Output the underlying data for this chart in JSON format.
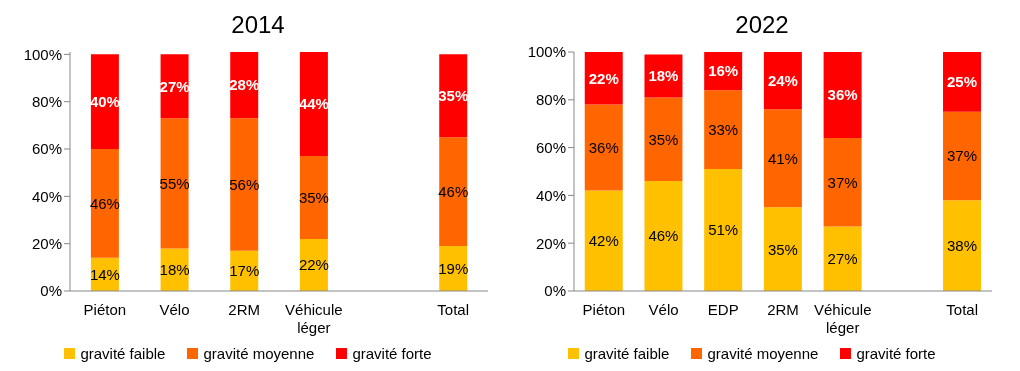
{
  "chart_data": [
    {
      "type": "bar",
      "title": "2014",
      "stacked": true,
      "legend": "bottom",
      "grid": false,
      "categories": [
        "Piéton",
        "Vélo",
        "2RM",
        "Véhicule léger",
        null,
        "Total"
      ],
      "series": [
        {
          "name": "gravité faible",
          "color": "#ffc000",
          "values": [
            14,
            18,
            17,
            22,
            null,
            19
          ],
          "value_labels": [
            "14%",
            "18%",
            "17%",
            "22%",
            null,
            "19%"
          ]
        },
        {
          "name": "gravité moyenne",
          "color": "#ff6600",
          "values": [
            46,
            55,
            56,
            35,
            null,
            46
          ],
          "value_labels": [
            "46%",
            "55%",
            "56%",
            "35%",
            null,
            "46%"
          ]
        },
        {
          "name": "gravité forte",
          "color": "#ff0000",
          "values": [
            40,
            27,
            28,
            44,
            null,
            35
          ],
          "value_labels": [
            "40%",
            "27%",
            "28%",
            "44%",
            null,
            "35%"
          ]
        }
      ],
      "ylim": [
        0,
        101
      ],
      "yticks": [
        {
          "value": 0,
          "label": "0%"
        },
        {
          "value": 20,
          "label": "20%"
        },
        {
          "value": 40,
          "label": "40%"
        },
        {
          "value": 60,
          "label": "60%"
        },
        {
          "value": 80,
          "label": "80%"
        },
        {
          "value": 100,
          "label": "100%"
        }
      ]
    },
    {
      "type": "bar",
      "title": "2022",
      "stacked": true,
      "legend": "bottom",
      "grid": false,
      "categories": [
        "Piéton",
        "Vélo",
        "EDP",
        "2RM",
        "Véhicule léger",
        null,
        "Total"
      ],
      "series": [
        {
          "name": "gravité faible",
          "color": "#ffc000",
          "values": [
            42,
            46,
            51,
            35,
            27,
            null,
            38
          ],
          "value_labels": [
            "42%",
            "46%",
            "51%",
            "35%",
            "27%",
            null,
            "38%"
          ]
        },
        {
          "name": "gravité moyenne",
          "color": "#ff6600",
          "values": [
            36,
            35,
            33,
            41,
            37,
            null,
            37
          ],
          "value_labels": [
            "36%",
            "35%",
            "33%",
            "41%",
            "37%",
            null,
            "37%"
          ]
        },
        {
          "name": "gravité forte",
          "color": "#ff0000",
          "values": [
            22,
            18,
            16,
            24,
            36,
            null,
            25
          ],
          "value_labels": [
            "22%",
            "18%",
            "16%",
            "24%",
            "36%",
            null,
            "25%"
          ]
        }
      ],
      "ylim": [
        0,
        100
      ],
      "yticks": [
        {
          "value": 0,
          "label": "0%"
        },
        {
          "value": 20,
          "label": "20%"
        },
        {
          "value": 40,
          "label": "40%"
        },
        {
          "value": 60,
          "label": "60%"
        },
        {
          "value": 80,
          "label": "80%"
        },
        {
          "value": 100,
          "label": "100%"
        }
      ]
    }
  ]
}
